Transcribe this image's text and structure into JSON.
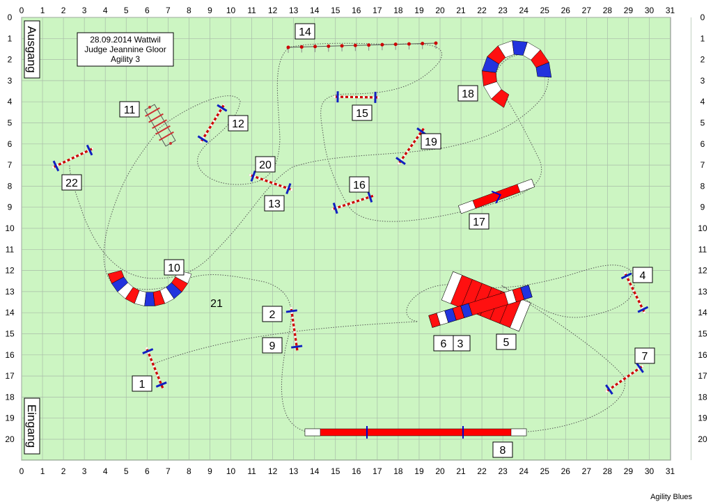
{
  "course": {
    "columns": [
      "0",
      "1",
      "2",
      "3",
      "4",
      "5",
      "6",
      "7",
      "8",
      "9",
      "10",
      "11",
      "12",
      "13",
      "14",
      "15",
      "16",
      "17",
      "18",
      "19",
      "20",
      "21",
      "22",
      "23",
      "24",
      "25",
      "26",
      "27",
      "28",
      "29",
      "30",
      "31"
    ],
    "rows": [
      "0",
      "1",
      "2",
      "3",
      "4",
      "5",
      "6",
      "7",
      "8",
      "9",
      "10",
      "11",
      "12",
      "13",
      "14",
      "15",
      "16",
      "17",
      "18",
      "19",
      "20"
    ],
    "info": [
      "28.09.2014 Wattwil",
      "Judge Jeannine Gloor",
      "Agility 3"
    ],
    "exit_label": "Ausgang",
    "entry_label": "Eingang",
    "field_color": "#ccf5c2",
    "grid_color": "#a8bba8",
    "obstacle_numbers": [
      "1",
      "2",
      "3",
      "4",
      "5",
      "6",
      "7",
      "8",
      "9",
      "10",
      "11",
      "12",
      "13",
      "14",
      "15",
      "16",
      "17",
      "18",
      "19",
      "20",
      "21",
      "22"
    ]
  },
  "footer": "Agility Blues"
}
